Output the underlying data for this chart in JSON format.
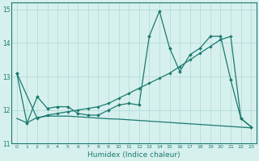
{
  "title": "",
  "xlabel": "Humidex (Indice chaleur)",
  "ylabel": "",
  "bg_color": "#d6f0ee",
  "line_color": "#1a7a6e",
  "grid_color": "#aed8d4",
  "xlim": [
    -0.5,
    23.5
  ],
  "ylim": [
    11,
    15.2
  ],
  "yticks": [
    11,
    12,
    13,
    14,
    15
  ],
  "xticks": [
    0,
    1,
    2,
    3,
    4,
    5,
    6,
    7,
    8,
    9,
    10,
    11,
    12,
    13,
    14,
    15,
    16,
    17,
    18,
    19,
    20,
    21,
    22,
    23
  ],
  "series": [
    {
      "x": [
        0,
        1,
        2,
        3,
        4,
        5,
        6,
        7,
        8,
        9,
        10,
        11,
        12,
        13,
        14,
        15,
        16,
        17,
        18,
        19,
        20,
        21,
        22,
        23
      ],
      "y": [
        13.1,
        11.6,
        12.4,
        12.05,
        12.1,
        12.1,
        11.9,
        11.85,
        11.85,
        12.0,
        12.15,
        12.2,
        12.15,
        14.2,
        14.95,
        13.85,
        13.15,
        13.65,
        13.85,
        14.2,
        14.2,
        12.9,
        11.75,
        11.5
      ],
      "marker": "D",
      "markersize": 2.0,
      "linestyle": "-",
      "linewidth": 0.9
    },
    {
      "x": [
        0,
        2,
        3,
        4,
        5,
        6,
        7,
        8,
        9,
        10,
        11,
        12,
        13,
        14,
        15,
        16,
        17,
        18,
        19,
        20,
        21,
        22,
        23
      ],
      "y": [
        13.1,
        11.75,
        11.85,
        11.9,
        11.95,
        12.0,
        12.05,
        12.1,
        12.2,
        12.35,
        12.5,
        12.65,
        12.8,
        12.95,
        13.1,
        13.3,
        13.5,
        13.7,
        13.9,
        14.1,
        14.2,
        11.75,
        11.5
      ],
      "marker": "D",
      "markersize": 1.8,
      "linestyle": "-",
      "linewidth": 0.9
    },
    {
      "x": [
        0,
        1,
        2,
        3,
        4,
        5,
        6,
        7,
        8,
        9,
        10,
        11,
        12,
        13,
        14,
        15,
        16,
        17,
        18,
        19,
        20,
        21,
        22,
        23
      ],
      "y": [
        11.75,
        11.62,
        11.78,
        11.82,
        11.82,
        11.82,
        11.8,
        11.78,
        11.76,
        11.74,
        11.73,
        11.71,
        11.69,
        11.67,
        11.65,
        11.63,
        11.61,
        11.59,
        11.57,
        11.55,
        11.53,
        11.51,
        11.49,
        11.47
      ],
      "marker": null,
      "markersize": 0,
      "linestyle": "-",
      "linewidth": 0.9
    }
  ]
}
